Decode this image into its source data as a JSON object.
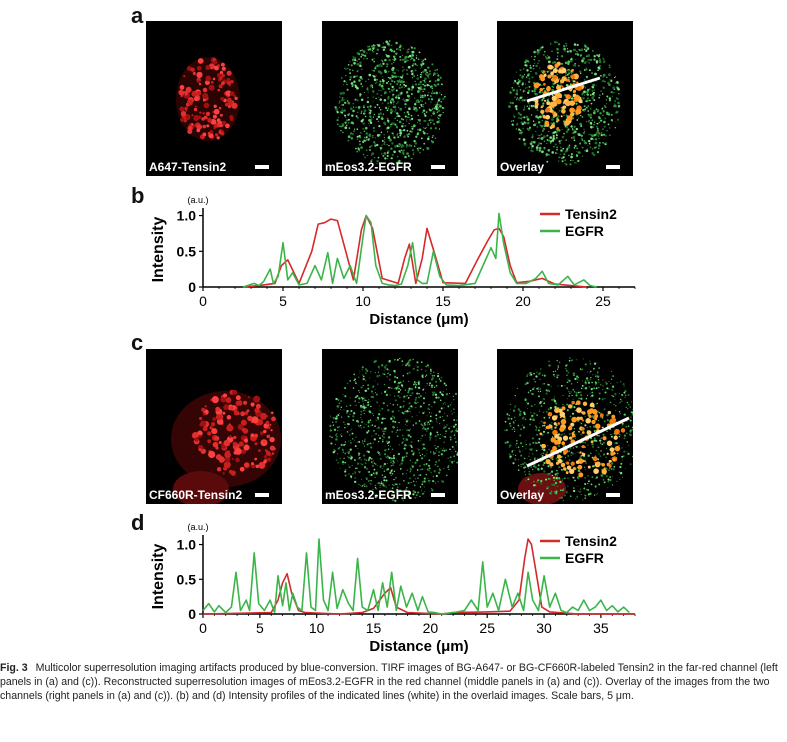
{
  "panels": {
    "a": {
      "letter": "a",
      "images": [
        {
          "label": "A647-Tensin2",
          "kind": "red"
        },
        {
          "label": "mEos3.2-EGFR",
          "kind": "green"
        },
        {
          "label": "Overlay",
          "kind": "overlay"
        }
      ]
    },
    "c": {
      "letter": "c",
      "images": [
        {
          "label": "CF660R-Tensin2",
          "kind": "red"
        },
        {
          "label": "mEos3.2-EGFR",
          "kind": "green"
        },
        {
          "label": "Overlay",
          "kind": "overlay"
        }
      ]
    }
  },
  "chart_data": [
    {
      "panel": "b",
      "type": "line",
      "xlabel": "Distance (μm)",
      "ylabel": "Intensity",
      "yunit": "(a.u.)",
      "xlim": [
        0,
        27
      ],
      "ylim": [
        0,
        1.05
      ],
      "xticks": [
        0,
        5,
        10,
        15,
        20,
        25
      ],
      "yticks": [
        0,
        0.5,
        1.0
      ],
      "ytick_labels": [
        "0",
        "0.5",
        "1.0"
      ],
      "legend_position": "top-right",
      "series": [
        {
          "name": "Tensin2",
          "color": "#d42a2a",
          "x": [
            2.5,
            3.5,
            4.5,
            4.9,
            5.3,
            6.0,
            6.8,
            7.2,
            7.6,
            8.0,
            8.4,
            8.8,
            9.4,
            9.9,
            10.2,
            10.6,
            11.2,
            12.2,
            12.6,
            12.9,
            13.3,
            13.7,
            14.0,
            14.5,
            15.0,
            16.4,
            17.2,
            17.8,
            18.2,
            18.5,
            18.8,
            19.2,
            19.6,
            20.4,
            21.2,
            22.0,
            24.0
          ],
          "y": [
            0,
            0.02,
            0.05,
            0.3,
            0.38,
            0.05,
            0.5,
            0.88,
            0.9,
            0.95,
            0.93,
            0.6,
            0.1,
            0.8,
            1.0,
            0.82,
            0.12,
            0.05,
            0.4,
            0.6,
            0.05,
            0.4,
            0.82,
            0.45,
            0.06,
            0.05,
            0.4,
            0.65,
            0.8,
            0.82,
            0.7,
            0.3,
            0.06,
            0.08,
            0.12,
            0.04,
            0.0
          ]
        },
        {
          "name": "EGFR",
          "color": "#3bb54a",
          "x": [
            2.5,
            3.2,
            3.5,
            3.8,
            4.2,
            4.4,
            4.7,
            5.0,
            5.3,
            5.6,
            6.0,
            6.5,
            7.0,
            7.4,
            7.8,
            8.1,
            8.4,
            8.8,
            9.2,
            9.6,
            10.0,
            10.2,
            10.5,
            10.8,
            11.2,
            11.6,
            12.0,
            12.4,
            12.8,
            13.1,
            13.4,
            13.7,
            14.0,
            14.4,
            14.8,
            15.2,
            16.0,
            17.0,
            17.6,
            18.0,
            18.3,
            18.5,
            18.8,
            19.2,
            19.6,
            20.2,
            20.8,
            21.2,
            21.6,
            22.2,
            22.8,
            23.2,
            23.8,
            24.2,
            24.6
          ],
          "y": [
            0,
            0.05,
            0.02,
            0.08,
            0.25,
            0.05,
            0.15,
            0.62,
            0.1,
            0.2,
            0.03,
            0.05,
            0.3,
            0.1,
            0.48,
            0.05,
            0.4,
            0.12,
            0.3,
            0.05,
            0.7,
            1.0,
            0.9,
            0.3,
            0.05,
            0.03,
            0.02,
            0.04,
            0.3,
            0.62,
            0.1,
            0.05,
            0.05,
            0.5,
            0.15,
            0.03,
            0.02,
            0.05,
            0.35,
            0.55,
            0.4,
            1.03,
            0.6,
            0.2,
            0.05,
            0.05,
            0.12,
            0.22,
            0.05,
            0.03,
            0.15,
            0.03,
            0.1,
            0.02,
            0.0
          ]
        }
      ]
    },
    {
      "panel": "d",
      "type": "line",
      "xlabel": "Distance (μm)",
      "ylabel": "Intensity",
      "yunit": "(a.u.)",
      "xlim": [
        0,
        38
      ],
      "ylim": [
        0,
        1.08
      ],
      "xticks": [
        0,
        5,
        10,
        15,
        20,
        25,
        30,
        35
      ],
      "yticks": [
        0,
        0.5,
        1.0
      ],
      "ytick_labels": [
        "0",
        "0.5",
        "1.0"
      ],
      "legend_position": "top-right",
      "series": [
        {
          "name": "Tensin2",
          "color": "#d42a2a",
          "x": [
            0,
            6.0,
            6.6,
            7.0,
            7.4,
            7.8,
            8.4,
            9.0,
            12.0,
            14.0,
            15.0,
            16.0,
            16.5,
            17.0,
            18.0,
            21.0,
            22.0,
            25.0,
            27.0,
            27.8,
            28.3,
            28.6,
            28.9,
            29.3,
            29.8,
            30.5,
            33.0,
            38.0
          ],
          "y": [
            0,
            0.02,
            0.2,
            0.45,
            0.58,
            0.3,
            0.05,
            0.02,
            0.0,
            0.02,
            0.08,
            0.3,
            0.38,
            0.1,
            0.02,
            0.0,
            0.02,
            0.03,
            0.04,
            0.2,
            0.8,
            1.08,
            1.0,
            0.6,
            0.1,
            0.03,
            0.0,
            0.0
          ]
        },
        {
          "name": "EGFR",
          "color": "#3bb54a",
          "x": [
            0,
            0.5,
            1.0,
            1.4,
            2.0,
            2.5,
            2.9,
            3.3,
            3.8,
            4.1,
            4.5,
            4.9,
            5.4,
            5.9,
            6.3,
            6.6,
            7.0,
            7.3,
            7.6,
            7.9,
            8.3,
            8.7,
            9.1,
            9.5,
            9.9,
            10.2,
            10.6,
            11.0,
            11.4,
            11.8,
            12.3,
            12.8,
            13.2,
            13.6,
            14.0,
            14.5,
            15.0,
            15.4,
            15.8,
            16.2,
            16.6,
            17.0,
            17.4,
            17.9,
            18.4,
            18.9,
            19.3,
            19.8,
            20.4,
            21.0,
            22.0,
            23.0,
            23.6,
            24.2,
            24.6,
            25.0,
            25.5,
            26.0,
            26.6,
            27.2,
            27.7,
            28.2,
            28.6,
            29.0,
            29.5,
            30.0,
            30.5,
            31.0,
            31.5,
            32.0,
            32.5,
            33.0,
            33.5,
            34.0,
            34.5,
            35.0,
            35.5,
            36.0,
            36.5,
            37.0,
            37.5
          ],
          "y": [
            0.05,
            0.15,
            0.03,
            0.12,
            0.02,
            0.1,
            0.6,
            0.05,
            0.2,
            0.05,
            0.88,
            0.15,
            0.05,
            0.2,
            0.02,
            0.55,
            0.12,
            0.45,
            0.05,
            0.3,
            0.1,
            0.05,
            0.88,
            0.1,
            0.05,
            1.08,
            0.2,
            0.05,
            0.6,
            0.08,
            0.35,
            0.15,
            0.05,
            0.8,
            0.1,
            0.05,
            0.35,
            0.05,
            0.45,
            0.1,
            0.6,
            0.05,
            0.4,
            0.1,
            0.3,
            0.05,
            0.25,
            0.03,
            0.02,
            0.0,
            0.02,
            0.05,
            0.2,
            0.05,
            0.75,
            0.1,
            0.3,
            0.05,
            0.5,
            0.1,
            0.3,
            0.05,
            0.6,
            0.2,
            0.05,
            0.55,
            0.1,
            0.3,
            0.05,
            0.02,
            0.1,
            0.05,
            0.2,
            0.05,
            0.1,
            0.2,
            0.05,
            0.12,
            0.03,
            0.1,
            0.02
          ]
        }
      ]
    }
  ],
  "caption": {
    "fig_label": "Fig. 3",
    "text": "Multicolor superresolution imaging artifacts produced by blue-conversion. TIRF images of BG-A647- or BG-CF660R-labeled Tensin2 in the far-red channel (left panels in (a) and (c)). Reconstructed superresolution images of mEos3.2-EGFR in the red channel (middle panels in (a) and (c)). Overlay of the images from the two channels (right panels in (a) and (c)). (b) and (d) Intensity profiles of the indicated lines (white) in the overlaid images. Scale bars, 5 μm."
  }
}
